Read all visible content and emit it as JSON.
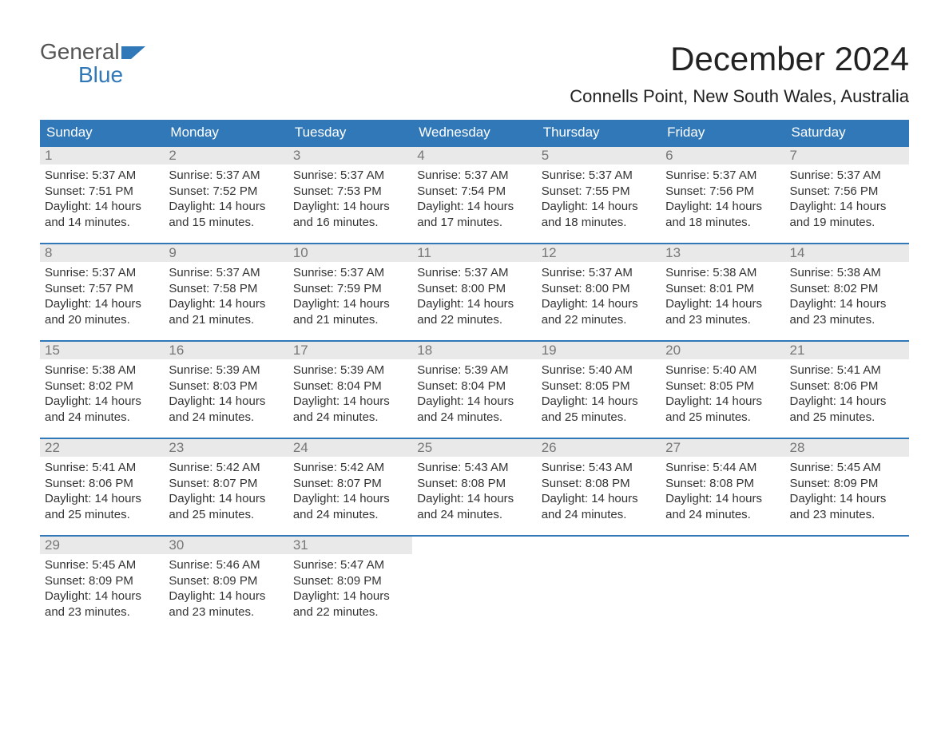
{
  "logo": {
    "top": "General",
    "bottom": "Blue"
  },
  "title": "December 2024",
  "location": "Connells Point, New South Wales, Australia",
  "colors": {
    "header_bg": "#3178b8",
    "header_text": "#ffffff",
    "daynum_bg": "#e9e9e9",
    "daynum_text": "#777777",
    "week_border": "#3178b8",
    "body_text": "#333333",
    "background": "#ffffff",
    "logo_top": "#555555",
    "logo_bottom": "#3178b8"
  },
  "typography": {
    "title_fontsize": 42,
    "location_fontsize": 22,
    "dayheader_fontsize": 17,
    "daynum_fontsize": 17,
    "body_fontsize": 15,
    "logo_fontsize": 28
  },
  "day_headers": [
    "Sunday",
    "Monday",
    "Tuesday",
    "Wednesday",
    "Thursday",
    "Friday",
    "Saturday"
  ],
  "weeks": [
    [
      {
        "n": "1",
        "sunrise": "Sunrise: 5:37 AM",
        "sunset": "Sunset: 7:51 PM",
        "d1": "Daylight: 14 hours",
        "d2": "and 14 minutes."
      },
      {
        "n": "2",
        "sunrise": "Sunrise: 5:37 AM",
        "sunset": "Sunset: 7:52 PM",
        "d1": "Daylight: 14 hours",
        "d2": "and 15 minutes."
      },
      {
        "n": "3",
        "sunrise": "Sunrise: 5:37 AM",
        "sunset": "Sunset: 7:53 PM",
        "d1": "Daylight: 14 hours",
        "d2": "and 16 minutes."
      },
      {
        "n": "4",
        "sunrise": "Sunrise: 5:37 AM",
        "sunset": "Sunset: 7:54 PM",
        "d1": "Daylight: 14 hours",
        "d2": "and 17 minutes."
      },
      {
        "n": "5",
        "sunrise": "Sunrise: 5:37 AM",
        "sunset": "Sunset: 7:55 PM",
        "d1": "Daylight: 14 hours",
        "d2": "and 18 minutes."
      },
      {
        "n": "6",
        "sunrise": "Sunrise: 5:37 AM",
        "sunset": "Sunset: 7:56 PM",
        "d1": "Daylight: 14 hours",
        "d2": "and 18 minutes."
      },
      {
        "n": "7",
        "sunrise": "Sunrise: 5:37 AM",
        "sunset": "Sunset: 7:56 PM",
        "d1": "Daylight: 14 hours",
        "d2": "and 19 minutes."
      }
    ],
    [
      {
        "n": "8",
        "sunrise": "Sunrise: 5:37 AM",
        "sunset": "Sunset: 7:57 PM",
        "d1": "Daylight: 14 hours",
        "d2": "and 20 minutes."
      },
      {
        "n": "9",
        "sunrise": "Sunrise: 5:37 AM",
        "sunset": "Sunset: 7:58 PM",
        "d1": "Daylight: 14 hours",
        "d2": "and 21 minutes."
      },
      {
        "n": "10",
        "sunrise": "Sunrise: 5:37 AM",
        "sunset": "Sunset: 7:59 PM",
        "d1": "Daylight: 14 hours",
        "d2": "and 21 minutes."
      },
      {
        "n": "11",
        "sunrise": "Sunrise: 5:37 AM",
        "sunset": "Sunset: 8:00 PM",
        "d1": "Daylight: 14 hours",
        "d2": "and 22 minutes."
      },
      {
        "n": "12",
        "sunrise": "Sunrise: 5:37 AM",
        "sunset": "Sunset: 8:00 PM",
        "d1": "Daylight: 14 hours",
        "d2": "and 22 minutes."
      },
      {
        "n": "13",
        "sunrise": "Sunrise: 5:38 AM",
        "sunset": "Sunset: 8:01 PM",
        "d1": "Daylight: 14 hours",
        "d2": "and 23 minutes."
      },
      {
        "n": "14",
        "sunrise": "Sunrise: 5:38 AM",
        "sunset": "Sunset: 8:02 PM",
        "d1": "Daylight: 14 hours",
        "d2": "and 23 minutes."
      }
    ],
    [
      {
        "n": "15",
        "sunrise": "Sunrise: 5:38 AM",
        "sunset": "Sunset: 8:02 PM",
        "d1": "Daylight: 14 hours",
        "d2": "and 24 minutes."
      },
      {
        "n": "16",
        "sunrise": "Sunrise: 5:39 AM",
        "sunset": "Sunset: 8:03 PM",
        "d1": "Daylight: 14 hours",
        "d2": "and 24 minutes."
      },
      {
        "n": "17",
        "sunrise": "Sunrise: 5:39 AM",
        "sunset": "Sunset: 8:04 PM",
        "d1": "Daylight: 14 hours",
        "d2": "and 24 minutes."
      },
      {
        "n": "18",
        "sunrise": "Sunrise: 5:39 AM",
        "sunset": "Sunset: 8:04 PM",
        "d1": "Daylight: 14 hours",
        "d2": "and 24 minutes."
      },
      {
        "n": "19",
        "sunrise": "Sunrise: 5:40 AM",
        "sunset": "Sunset: 8:05 PM",
        "d1": "Daylight: 14 hours",
        "d2": "and 25 minutes."
      },
      {
        "n": "20",
        "sunrise": "Sunrise: 5:40 AM",
        "sunset": "Sunset: 8:05 PM",
        "d1": "Daylight: 14 hours",
        "d2": "and 25 minutes."
      },
      {
        "n": "21",
        "sunrise": "Sunrise: 5:41 AM",
        "sunset": "Sunset: 8:06 PM",
        "d1": "Daylight: 14 hours",
        "d2": "and 25 minutes."
      }
    ],
    [
      {
        "n": "22",
        "sunrise": "Sunrise: 5:41 AM",
        "sunset": "Sunset: 8:06 PM",
        "d1": "Daylight: 14 hours",
        "d2": "and 25 minutes."
      },
      {
        "n": "23",
        "sunrise": "Sunrise: 5:42 AM",
        "sunset": "Sunset: 8:07 PM",
        "d1": "Daylight: 14 hours",
        "d2": "and 25 minutes."
      },
      {
        "n": "24",
        "sunrise": "Sunrise: 5:42 AM",
        "sunset": "Sunset: 8:07 PM",
        "d1": "Daylight: 14 hours",
        "d2": "and 24 minutes."
      },
      {
        "n": "25",
        "sunrise": "Sunrise: 5:43 AM",
        "sunset": "Sunset: 8:08 PM",
        "d1": "Daylight: 14 hours",
        "d2": "and 24 minutes."
      },
      {
        "n": "26",
        "sunrise": "Sunrise: 5:43 AM",
        "sunset": "Sunset: 8:08 PM",
        "d1": "Daylight: 14 hours",
        "d2": "and 24 minutes."
      },
      {
        "n": "27",
        "sunrise": "Sunrise: 5:44 AM",
        "sunset": "Sunset: 8:08 PM",
        "d1": "Daylight: 14 hours",
        "d2": "and 24 minutes."
      },
      {
        "n": "28",
        "sunrise": "Sunrise: 5:45 AM",
        "sunset": "Sunset: 8:09 PM",
        "d1": "Daylight: 14 hours",
        "d2": "and 23 minutes."
      }
    ],
    [
      {
        "n": "29",
        "sunrise": "Sunrise: 5:45 AM",
        "sunset": "Sunset: 8:09 PM",
        "d1": "Daylight: 14 hours",
        "d2": "and 23 minutes."
      },
      {
        "n": "30",
        "sunrise": "Sunrise: 5:46 AM",
        "sunset": "Sunset: 8:09 PM",
        "d1": "Daylight: 14 hours",
        "d2": "and 23 minutes."
      },
      {
        "n": "31",
        "sunrise": "Sunrise: 5:47 AM",
        "sunset": "Sunset: 8:09 PM",
        "d1": "Daylight: 14 hours",
        "d2": "and 22 minutes."
      },
      null,
      null,
      null,
      null
    ]
  ]
}
